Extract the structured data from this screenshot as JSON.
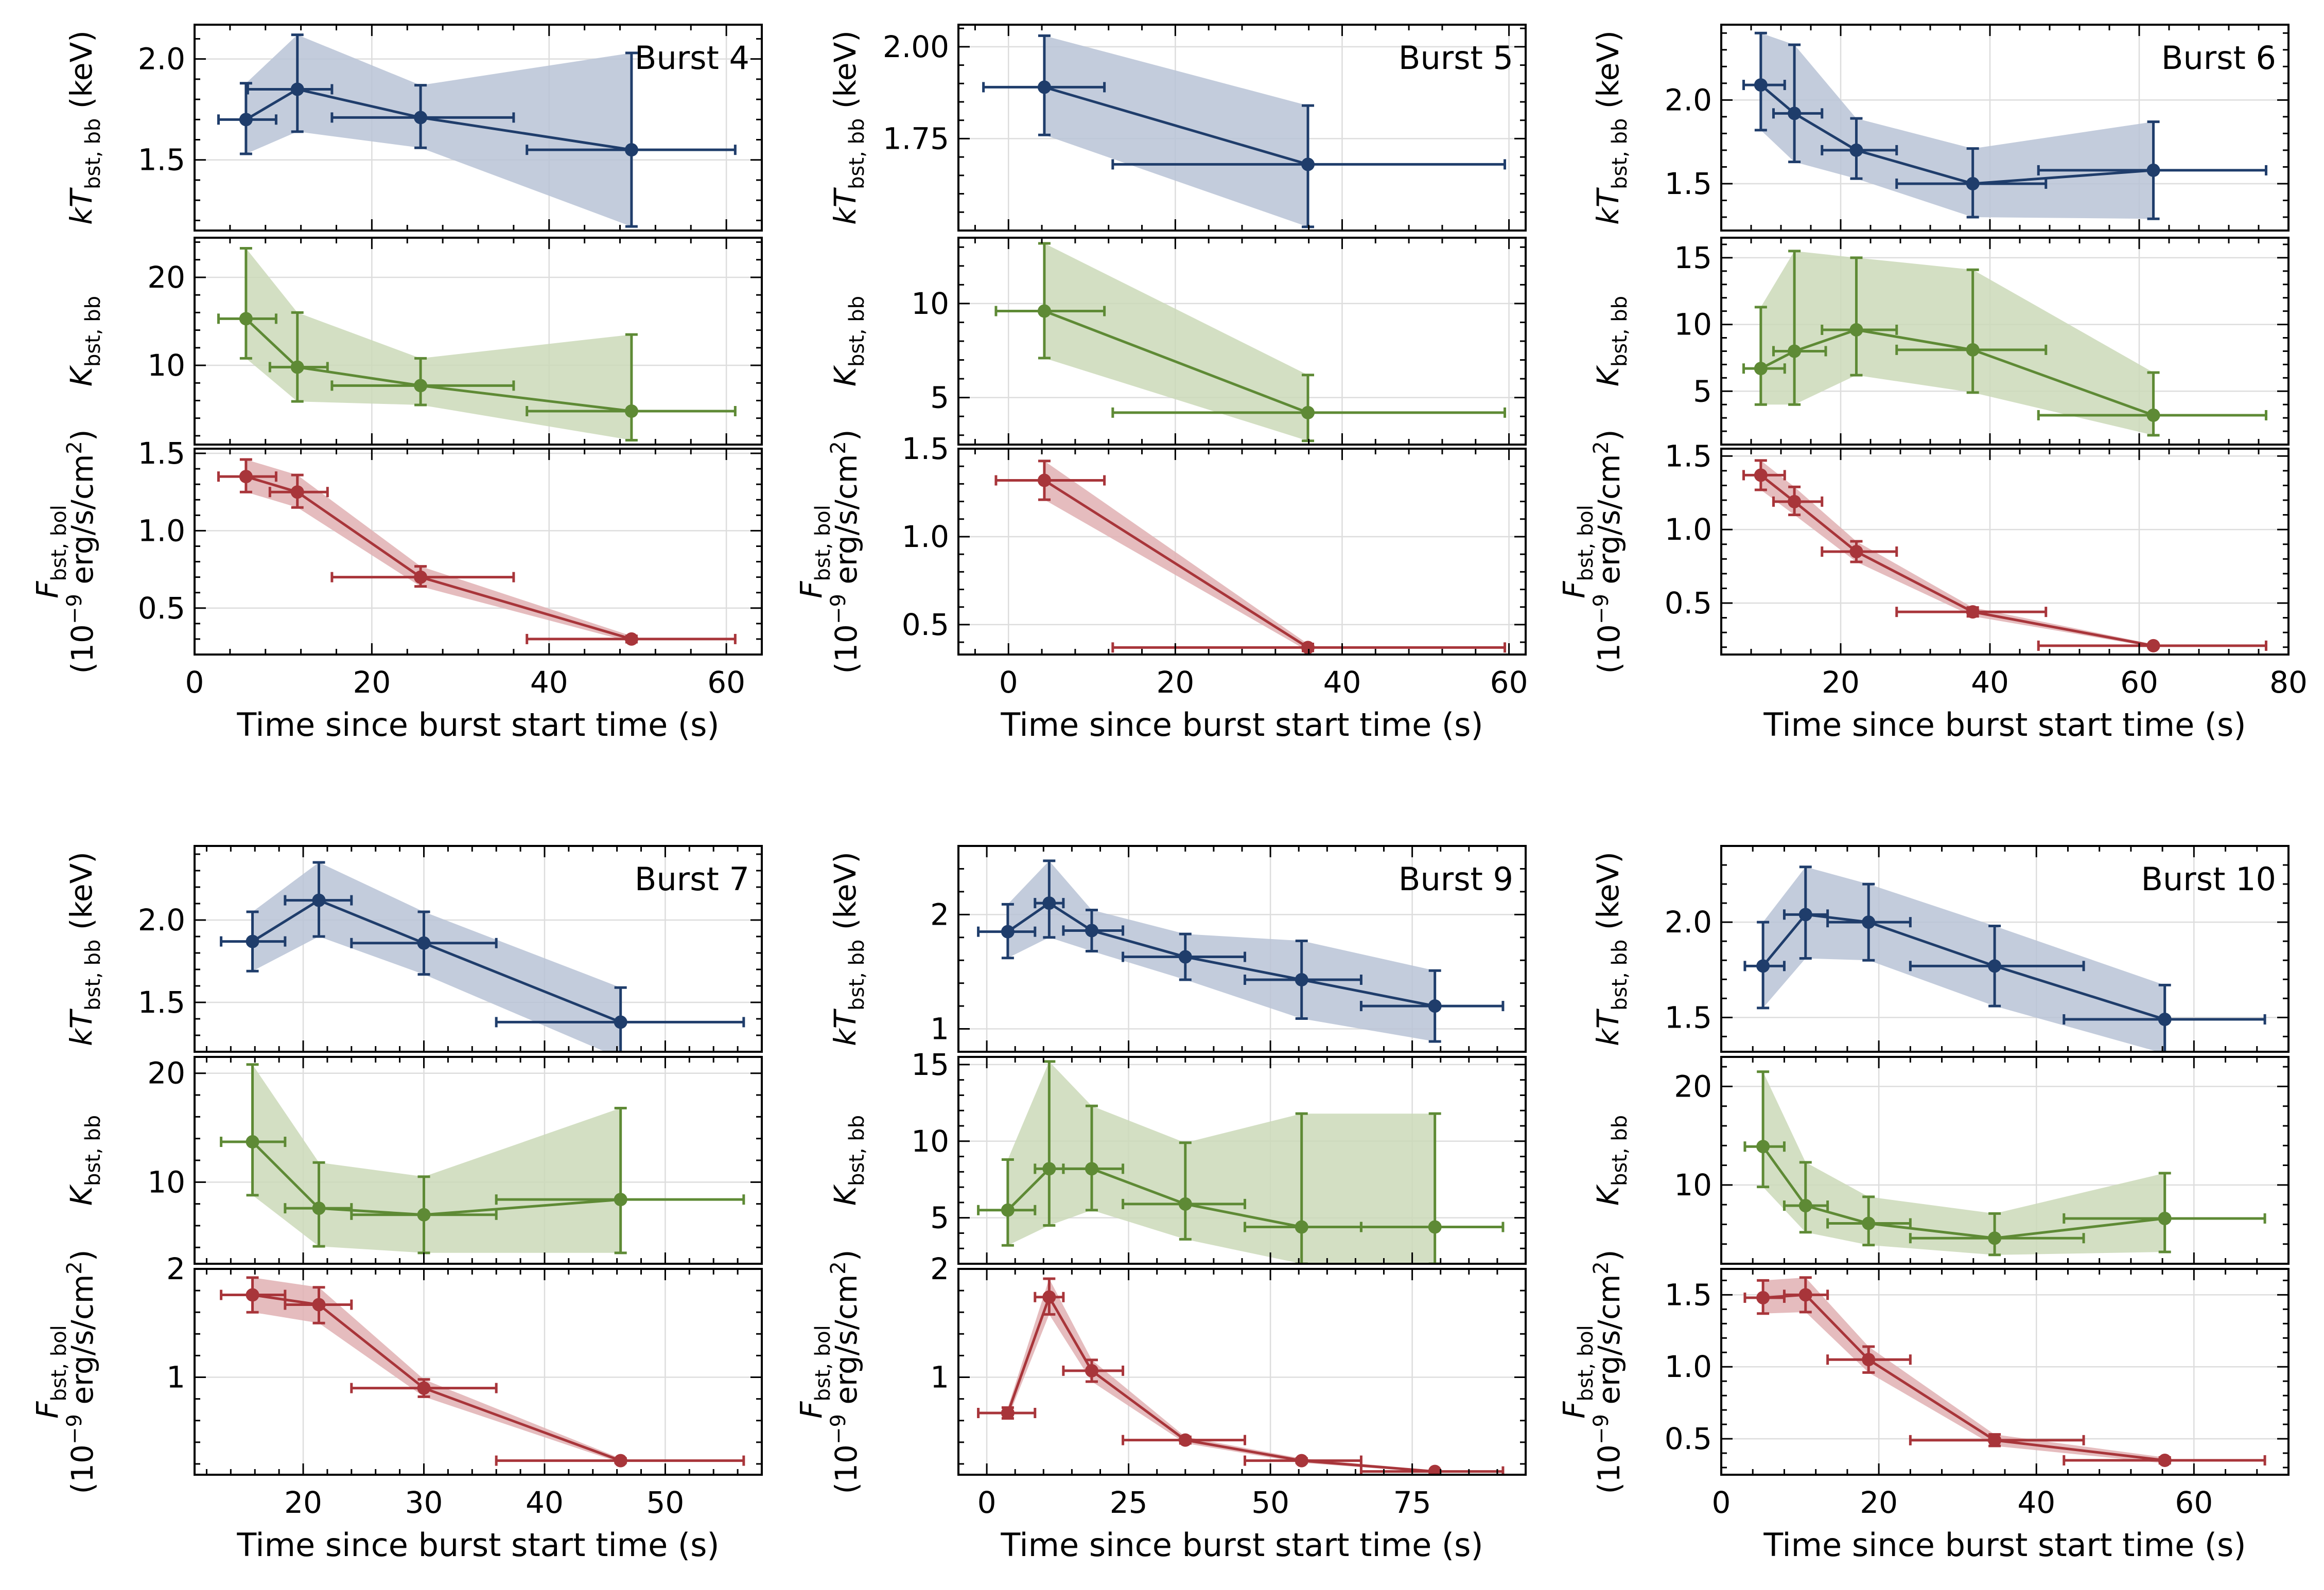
{
  "colors": {
    "kT": "#1f3d6b",
    "kT_band": "#b9c3d6",
    "K": "#5e8a35",
    "K_band": "#cbd9b8",
    "F": "#a8353a",
    "F_band": "#e0b0b3",
    "grid": "#dddddd"
  },
  "labels": {
    "xlabel": "Time since burst start time (s)",
    "kT_ylabel": "kT_bst,bb (keV)",
    "K_ylabel": "K_bst,bb",
    "F_ylabel_line1": "F_bst,bol",
    "F_ylabel_line2": "(10^-9 erg/s/cm^2)"
  },
  "chart_data": [
    {
      "type": "scatter",
      "title": "Burst 4",
      "xlabel": "Time since burst start time (s)",
      "xlim": [
        0,
        64
      ],
      "xticks": [
        0,
        20,
        40,
        60
      ],
      "kT": {
        "ylabel": "kT_bst,bb (keV)",
        "ylim": [
          1.15,
          2.17
        ],
        "yticks": [
          1.5,
          2.0
        ],
        "tick_decimals": 1,
        "points": [
          [
            5.8,
            1.7,
            2.7,
            9.2,
            1.53,
            1.88
          ],
          [
            11.6,
            1.85,
            6.0,
            15.5,
            1.64,
            2.12
          ],
          [
            25.5,
            1.71,
            15.5,
            36.0,
            1.56,
            1.87
          ],
          [
            49.3,
            1.55,
            37.5,
            61.0,
            1.17,
            2.03
          ]
        ]
      },
      "K": {
        "ylabel": "K_bst,bb",
        "ylim": [
          1,
          24.5
        ],
        "yticks": [
          10,
          20
        ],
        "tick_decimals": 0,
        "points": [
          [
            5.8,
            15.3,
            2.7,
            9.2,
            10.8,
            23.3
          ],
          [
            11.6,
            9.8,
            8.5,
            15.0,
            5.9,
            16.0
          ],
          [
            25.5,
            7.7,
            15.5,
            36.0,
            5.5,
            10.8
          ],
          [
            49.3,
            4.8,
            37.5,
            61.0,
            1.5,
            13.5
          ]
        ]
      },
      "F": {
        "ylabel": "F_bst,bol (10^-9 erg/s/cm^2)",
        "ylim": [
          0.2,
          1.53
        ],
        "yticks": [
          0.5,
          1.0,
          1.5
        ],
        "tick_decimals": 1,
        "points": [
          [
            5.8,
            1.35,
            2.7,
            9.2,
            1.25,
            1.46
          ],
          [
            11.6,
            1.25,
            8.5,
            15.0,
            1.15,
            1.36
          ],
          [
            25.5,
            0.7,
            15.5,
            36.0,
            0.64,
            0.77
          ],
          [
            49.3,
            0.3,
            37.5,
            61.0,
            0.28,
            0.32
          ]
        ]
      }
    },
    {
      "type": "scatter",
      "title": "Burst 5",
      "xlabel": "Time since burst start time (s)",
      "xlim": [
        -6,
        62
      ],
      "xticks": [
        0,
        20,
        40,
        60
      ],
      "kT": {
        "ylabel": "kT_bst,bb (keV)",
        "ylim": [
          1.5,
          2.06
        ],
        "yticks": [
          1.75,
          2.0
        ],
        "tick_decimals": 2,
        "points": [
          [
            4.3,
            1.89,
            -3.0,
            11.5,
            1.76,
            2.03
          ],
          [
            35.9,
            1.68,
            12.5,
            59.5,
            1.51,
            1.84
          ]
        ]
      },
      "K": {
        "ylabel": "K_bst,bb",
        "ylim": [
          2.5,
          13.5
        ],
        "yticks": [
          5,
          10
        ],
        "tick_decimals": 0,
        "points": [
          [
            4.3,
            9.6,
            -1.5,
            11.5,
            7.1,
            13.2
          ],
          [
            35.9,
            4.2,
            12.5,
            59.5,
            2.7,
            6.2
          ]
        ]
      },
      "F": {
        "ylabel": "F_bst,bol (10^-9 erg/s/cm^2)",
        "ylim": [
          0.33,
          1.5
        ],
        "yticks": [
          0.5,
          1.0,
          1.5
        ],
        "tick_decimals": 1,
        "points": [
          [
            4.3,
            1.32,
            -1.5,
            11.5,
            1.21,
            1.43
          ],
          [
            35.9,
            0.37,
            12.5,
            59.5,
            0.35,
            0.39
          ]
        ]
      }
    },
    {
      "type": "scatter",
      "title": "Burst 6",
      "xlabel": "Time since burst start time (s)",
      "xlim": [
        4,
        80
      ],
      "xticks": [
        20,
        40,
        60,
        80
      ],
      "kT": {
        "ylabel": "kT_bst,bb (keV)",
        "ylim": [
          1.22,
          2.45
        ],
        "yticks": [
          1.5,
          2.0
        ],
        "tick_decimals": 1,
        "points": [
          [
            9.3,
            2.09,
            7.0,
            12.5,
            1.82,
            2.4
          ],
          [
            13.8,
            1.92,
            11.0,
            17.5,
            1.63,
            2.33
          ],
          [
            22.1,
            1.7,
            17.5,
            27.5,
            1.53,
            1.89
          ],
          [
            37.7,
            1.5,
            27.5,
            47.5,
            1.3,
            1.71
          ],
          [
            61.9,
            1.58,
            46.5,
            77.0,
            1.29,
            1.87
          ]
        ]
      },
      "K": {
        "ylabel": "K_bst,bb",
        "ylim": [
          1,
          16.5
        ],
        "yticks": [
          5,
          10,
          15
        ],
        "tick_decimals": 0,
        "points": [
          [
            9.3,
            6.7,
            7.0,
            12.5,
            4.0,
            11.3
          ],
          [
            13.8,
            8.0,
            11.0,
            18.0,
            4.0,
            15.5
          ],
          [
            22.1,
            9.6,
            17.5,
            27.5,
            6.2,
            15.0
          ],
          [
            37.7,
            8.1,
            27.5,
            47.5,
            4.9,
            14.1
          ],
          [
            61.9,
            3.2,
            46.5,
            77.0,
            1.7,
            6.4
          ]
        ]
      },
      "F": {
        "ylabel": "F_bst,bol (10^-9 erg/s/cm^2)",
        "ylim": [
          0.15,
          1.55
        ],
        "yticks": [
          0.5,
          1.0,
          1.5
        ],
        "tick_decimals": 1,
        "points": [
          [
            9.3,
            1.37,
            7.0,
            12.5,
            1.27,
            1.47
          ],
          [
            13.8,
            1.19,
            11.0,
            17.5,
            1.1,
            1.29
          ],
          [
            22.1,
            0.85,
            17.5,
            27.5,
            0.78,
            0.92
          ],
          [
            37.7,
            0.44,
            27.5,
            47.5,
            0.41,
            0.47
          ],
          [
            61.9,
            0.21,
            46.5,
            77.0,
            0.2,
            0.22
          ]
        ]
      }
    },
    {
      "type": "scatter",
      "title": "Burst 7",
      "xlabel": "Time since burst start time (s)",
      "xlim": [
        11,
        58
      ],
      "xticks": [
        20,
        30,
        40,
        50
      ],
      "kT": {
        "ylabel": "kT_bst,bb (keV)",
        "ylim": [
          1.2,
          2.45
        ],
        "yticks": [
          1.5,
          2.0
        ],
        "tick_decimals": 1,
        "points": [
          [
            15.8,
            1.87,
            13.2,
            18.5,
            1.69,
            2.05
          ],
          [
            21.3,
            2.12,
            18.5,
            24.0,
            1.9,
            2.35
          ],
          [
            30.0,
            1.86,
            24.0,
            36.0,
            1.67,
            2.05
          ],
          [
            46.3,
            1.38,
            36.0,
            56.5,
            1.16,
            1.59
          ]
        ]
      },
      "K": {
        "ylabel": "K_bst,bb",
        "ylim": [
          2.5,
          21.5
        ],
        "yticks": [
          10,
          20
        ],
        "tick_decimals": 0,
        "points": [
          [
            15.8,
            13.7,
            13.2,
            18.5,
            8.8,
            20.8
          ],
          [
            21.3,
            7.6,
            18.5,
            24.0,
            4.1,
            11.8
          ],
          [
            30.0,
            7.0,
            24.0,
            36.0,
            3.5,
            10.5
          ],
          [
            46.3,
            8.4,
            36.0,
            56.5,
            3.5,
            16.8
          ]
        ]
      },
      "F": {
        "ylabel": "F_bst,bol (10^-9 erg/s/cm^2)",
        "ylim": [
          0.1,
          2.0
        ],
        "yticks": [
          1,
          2
        ],
        "tick_decimals": 0,
        "points": [
          [
            15.8,
            1.76,
            13.2,
            18.5,
            1.6,
            1.92
          ],
          [
            21.3,
            1.67,
            18.5,
            24.0,
            1.5,
            1.83
          ],
          [
            30.0,
            0.9,
            24.0,
            36.0,
            0.82,
            0.98
          ],
          [
            46.3,
            0.23,
            36.0,
            56.5,
            0.21,
            0.25
          ]
        ]
      }
    },
    {
      "type": "scatter",
      "title": "Burst 9",
      "xlabel": "Time since burst start time (s)",
      "xlim": [
        -5,
        95
      ],
      "xticks": [
        0,
        25,
        50,
        75
      ],
      "kT": {
        "ylabel": "kT_bst,bb (keV)",
        "ylim": [
          0.8,
          2.6
        ],
        "yticks": [
          1,
          2
        ],
        "tick_decimals": 0,
        "points": [
          [
            3.7,
            1.85,
            -1.5,
            8.5,
            1.62,
            2.09
          ],
          [
            11.0,
            2.1,
            8.5,
            13.5,
            1.8,
            2.47
          ],
          [
            18.5,
            1.86,
            13.5,
            24.0,
            1.68,
            2.04
          ],
          [
            35.0,
            1.63,
            24.0,
            45.5,
            1.43,
            1.83
          ],
          [
            55.5,
            1.43,
            45.5,
            66.0,
            1.09,
            1.77
          ],
          [
            79.0,
            1.2,
            66.0,
            91.0,
            0.89,
            1.51
          ]
        ]
      },
      "K": {
        "ylabel": "K_bst,bb",
        "ylim": [
          2,
          15.5
        ],
        "yticks": [
          5,
          10,
          15
        ],
        "tick_decimals": 0,
        "points": [
          [
            3.7,
            5.5,
            -1.5,
            8.5,
            3.2,
            8.8
          ],
          [
            11.0,
            8.2,
            8.5,
            13.5,
            4.5,
            15.2
          ],
          [
            18.5,
            8.2,
            13.5,
            24.0,
            5.5,
            12.3
          ],
          [
            35.0,
            5.9,
            24.0,
            45.5,
            3.6,
            9.9
          ],
          [
            55.5,
            4.4,
            45.5,
            66.0,
            2.0,
            11.8
          ],
          [
            79.0,
            4.4,
            66.0,
            91.0,
            2.0,
            11.8
          ]
        ]
      },
      "F": {
        "ylabel": "F_bst,bol (10^-9 erg/s/cm^2)",
        "ylim": [
          0.1,
          2.0
        ],
        "yticks": [
          1,
          2
        ],
        "tick_decimals": 0,
        "points": [
          [
            3.7,
            0.67,
            -1.5,
            8.5,
            0.62,
            0.72
          ],
          [
            11.0,
            1.74,
            8.5,
            13.5,
            1.58,
            1.91
          ],
          [
            18.5,
            1.06,
            13.5,
            24.0,
            0.96,
            1.16
          ],
          [
            35.0,
            0.42,
            24.0,
            45.5,
            0.39,
            0.45
          ],
          [
            55.5,
            0.23,
            45.5,
            66.0,
            0.21,
            0.25
          ],
          [
            79.0,
            0.13,
            66.0,
            91.0,
            0.12,
            0.14
          ]
        ]
      }
    },
    {
      "type": "scatter",
      "title": "Burst 10",
      "xlabel": "Time since burst start time (s)",
      "xlim": [
        0,
        72
      ],
      "xticks": [
        0,
        20,
        40,
        60
      ],
      "kT": {
        "ylabel": "kT_bst,bb (keV)",
        "ylim": [
          1.32,
          2.4
        ],
        "yticks": [
          1.5,
          2.0
        ],
        "tick_decimals": 1,
        "points": [
          [
            5.3,
            1.77,
            3.0,
            8.0,
            1.55,
            2.0
          ],
          [
            10.7,
            2.04,
            8.0,
            13.5,
            1.81,
            2.29
          ],
          [
            18.7,
            2.0,
            13.5,
            24.0,
            1.8,
            2.2
          ],
          [
            34.7,
            1.77,
            24.0,
            46.0,
            1.56,
            1.98
          ],
          [
            56.3,
            1.49,
            43.5,
            69.0,
            1.31,
            1.67
          ]
        ]
      },
      "K": {
        "ylabel": "K_bst,bb",
        "ylim": [
          2,
          23
        ],
        "yticks": [
          10,
          20
        ],
        "tick_decimals": 0,
        "points": [
          [
            5.3,
            13.9,
            3.0,
            8.0,
            9.8,
            21.5
          ],
          [
            10.7,
            7.9,
            8.0,
            13.5,
            5.2,
            12.3
          ],
          [
            18.7,
            6.1,
            13.5,
            24.0,
            3.9,
            8.8
          ],
          [
            34.7,
            4.6,
            24.0,
            46.0,
            2.9,
            7.1
          ],
          [
            56.3,
            6.6,
            43.5,
            69.0,
            3.2,
            11.2
          ]
        ]
      },
      "F": {
        "ylabel": "F_bst,bol (10^-9 erg/s/cm^2)",
        "ylim": [
          0.25,
          1.68
        ],
        "yticks": [
          0.5,
          1.0,
          1.5
        ],
        "tick_decimals": 1,
        "points": [
          [
            5.3,
            1.48,
            3.0,
            8.0,
            1.37,
            1.6
          ],
          [
            10.7,
            1.5,
            8.0,
            13.5,
            1.38,
            1.62
          ],
          [
            18.7,
            1.05,
            13.5,
            24.0,
            0.96,
            1.14
          ],
          [
            34.7,
            0.49,
            24.0,
            46.0,
            0.45,
            0.53
          ],
          [
            56.3,
            0.35,
            43.5,
            69.0,
            0.33,
            0.37
          ]
        ]
      }
    }
  ]
}
